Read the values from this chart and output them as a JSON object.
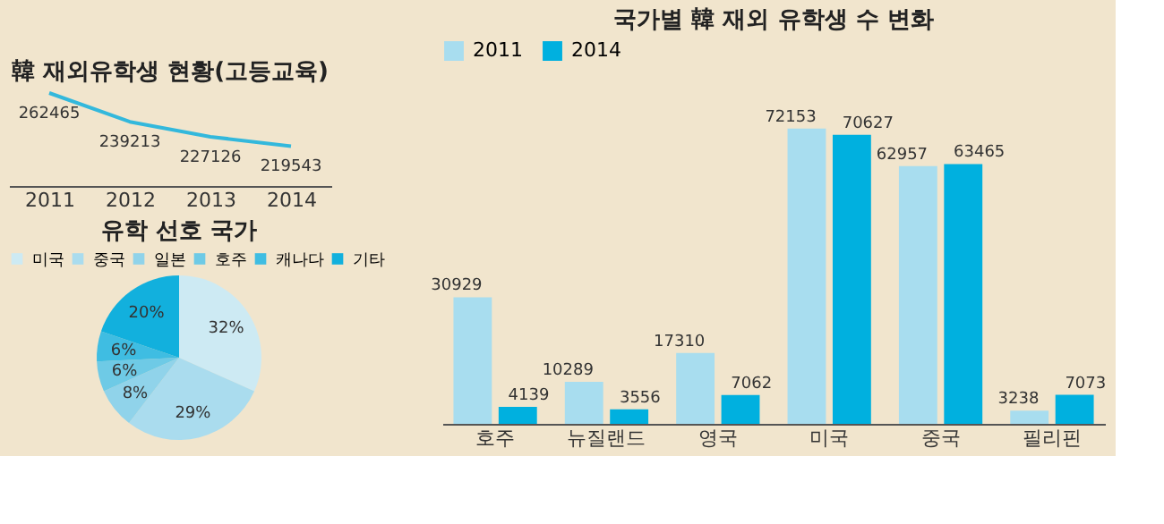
{
  "chart_data": [
    {
      "type": "line",
      "title": "韓 재외유학생 현황(고등교육)",
      "categories": [
        "2011",
        "2012",
        "2013",
        "2014"
      ],
      "values": [
        262465,
        239213,
        227126,
        219543
      ],
      "color": "#33b8dc",
      "data_labels": true,
      "marker": "none"
    },
    {
      "type": "pie",
      "title": "유학 선호 국가",
      "categories": [
        "미국",
        "중국",
        "일본",
        "호주",
        "캐나다",
        "기타"
      ],
      "values": [
        32,
        29,
        8,
        6,
        6,
        20
      ],
      "colors": [
        "#cdeaf3",
        "#aadcee",
        "#90d3ea",
        "#6ecae6",
        "#3fbde2",
        "#12b0dd"
      ],
      "legend": "top",
      "value_labels": [
        "32%",
        "29%",
        "8%",
        "6%",
        "6%",
        "20%"
      ]
    },
    {
      "type": "bar",
      "title": "국가별 韓 재외 유학생 수 변화",
      "categories": [
        "호주",
        "뉴질랜드",
        "영국",
        "미국",
        "중국",
        "필리핀"
      ],
      "series": [
        {
          "name": "2011",
          "color": "#a8ddef",
          "values": [
            30929,
            10289,
            17310,
            72153,
            62957,
            3238
          ]
        },
        {
          "name": "2014",
          "color": "#00b0df",
          "values": [
            4139,
            3556,
            7062,
            70627,
            63465,
            7073
          ]
        }
      ],
      "legend": "top",
      "data_labels": true,
      "grid": false
    }
  ]
}
